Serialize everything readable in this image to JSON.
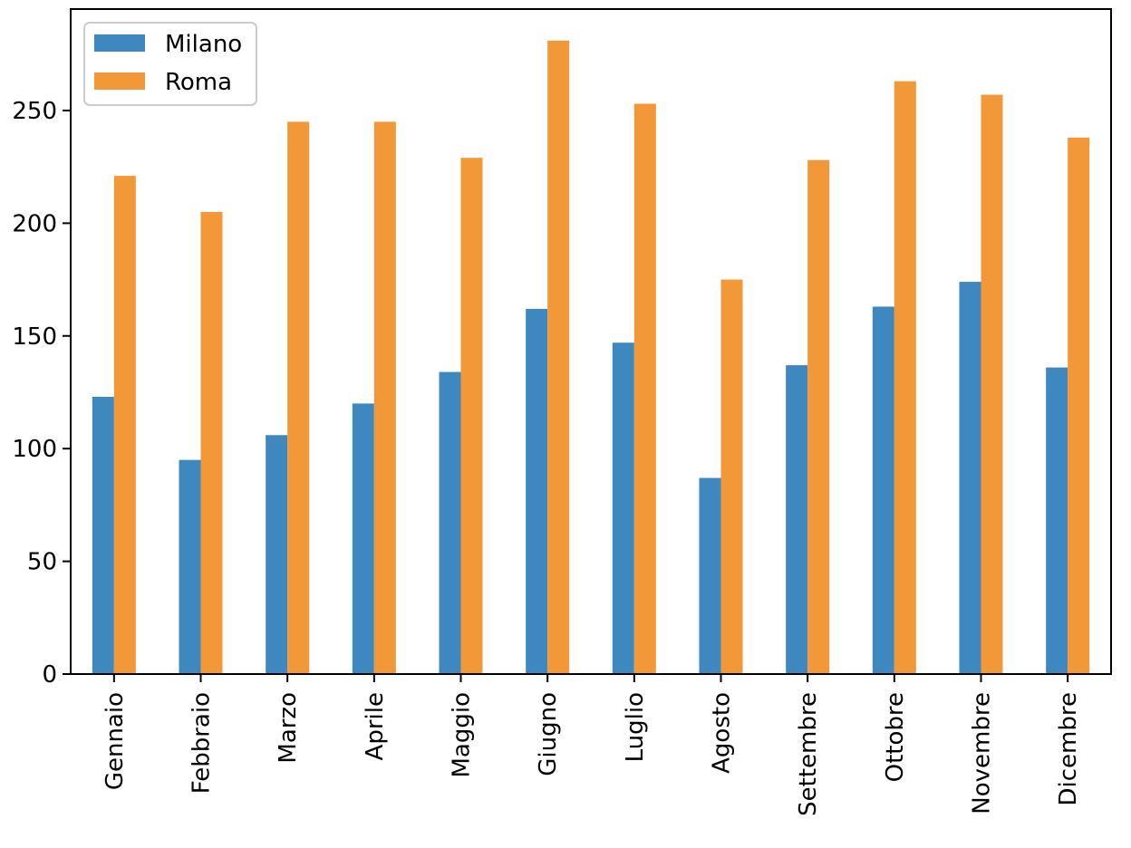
{
  "chart_data": {
    "type": "bar",
    "title": "",
    "xlabel": "",
    "ylabel": "",
    "categories": [
      "Gennaio",
      "Febbraio",
      "Marzo",
      "Aprile",
      "Maggio",
      "Giugno",
      "Luglio",
      "Agosto",
      "Settembre",
      "Ottobre",
      "Novembre",
      "Dicembre"
    ],
    "series": [
      {
        "name": "Milano",
        "color": "#3f88bf",
        "values": [
          123,
          95,
          106,
          120,
          134,
          162,
          147,
          87,
          137,
          163,
          174,
          136
        ]
      },
      {
        "name": "Roma",
        "color": "#f39839",
        "values": [
          221,
          205,
          245,
          245,
          229,
          281,
          253,
          175,
          228,
          263,
          257,
          238
        ]
      }
    ],
    "ylim": [
      0,
      295
    ],
    "yticks": [
      0,
      50,
      100,
      150,
      200,
      250
    ],
    "legend_position": "top-left",
    "grid": false
  }
}
